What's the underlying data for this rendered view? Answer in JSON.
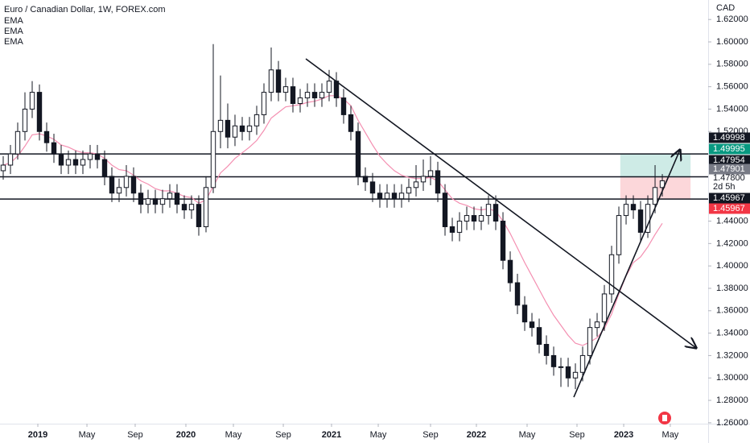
{
  "chart_data": {
    "type": "candlestick",
    "title": "Euro / Canadian Dollar, 1W, FOREX.com",
    "indicators": [
      "EMA",
      "EMA",
      "EMA"
    ],
    "currency": "CAD",
    "xlim": [
      -0.444,
      97.33
    ],
    "ylim": [
      1.2635,
      1.6374
    ],
    "xticks": [
      {
        "value": 4.78,
        "label": "2019"
      },
      {
        "value": 11.56,
        "label": "May"
      },
      {
        "value": 18.22,
        "label": "Sep"
      },
      {
        "value": 25.22,
        "label": "2020"
      },
      {
        "value": 31.78,
        "label": "May"
      },
      {
        "value": 38.67,
        "label": "Sep"
      },
      {
        "value": 45.33,
        "label": "2021"
      },
      {
        "value": 51.78,
        "label": "May"
      },
      {
        "value": 59.0,
        "label": "Sep"
      },
      {
        "value": 65.33,
        "label": "2022"
      },
      {
        "value": 72.33,
        "label": "May"
      },
      {
        "value": 79.22,
        "label": "Sep"
      },
      {
        "value": 85.67,
        "label": "2023"
      },
      {
        "value": 92.1,
        "label": "May"
      }
    ],
    "yticks": [
      {
        "value": 1.62,
        "label": "1.62000"
      },
      {
        "value": 1.6,
        "label": "1.60000"
      },
      {
        "value": 1.58,
        "label": "1.58000"
      },
      {
        "value": 1.56,
        "label": "1.56000"
      },
      {
        "value": 1.54,
        "label": "1.54000"
      },
      {
        "value": 1.52,
        "label": "1.52000"
      },
      {
        "value": 1.44,
        "label": "1.44000"
      },
      {
        "value": 1.42,
        "label": "1.42000"
      },
      {
        "value": 1.4,
        "label": "1.40000"
      },
      {
        "value": 1.38,
        "label": "1.38000"
      },
      {
        "value": 1.36,
        "label": "1.36000"
      },
      {
        "value": 1.34,
        "label": "1.34000"
      },
      {
        "value": 1.32,
        "label": "1.32000"
      },
      {
        "value": 1.3,
        "label": "1.30000"
      },
      {
        "value": 1.28,
        "label": "1.28000"
      },
      {
        "value": 1.26,
        "label": "1.26000"
      }
    ],
    "candles": {
      "open": [
        1.485,
        1.49,
        1.5,
        1.52,
        1.54,
        1.555,
        1.52,
        1.51,
        1.5,
        1.49,
        1.495,
        1.49,
        1.495,
        1.5,
        1.495,
        1.48,
        1.465,
        1.47,
        1.48,
        1.465,
        1.455,
        1.46,
        1.455,
        1.46,
        1.465,
        1.455,
        1.45,
        1.455,
        1.435,
        1.47,
        1.52,
        1.53,
        1.515,
        1.525,
        1.52,
        1.525,
        1.535,
        1.555,
        1.575,
        1.555,
        1.56,
        1.545,
        1.55,
        1.555,
        1.55,
        1.555,
        1.565,
        1.55,
        1.535,
        1.52,
        1.48,
        1.475,
        1.465,
        1.46,
        1.465,
        1.46,
        1.465,
        1.47,
        1.475,
        1.48,
        1.485,
        1.465,
        1.435,
        1.43,
        1.44,
        1.445,
        1.44,
        1.445,
        1.455,
        1.44,
        1.405,
        1.385,
        1.365,
        1.35,
        1.345,
        1.33,
        1.32,
        1.31,
        1.31,
        1.3,
        1.305,
        1.32,
        1.345,
        1.35,
        1.375,
        1.41,
        1.445,
        1.455,
        1.45,
        1.43,
        1.455,
        1.47
      ],
      "high": [
        1.498,
        1.508,
        1.528,
        1.555,
        1.565,
        1.562,
        1.528,
        1.518,
        1.508,
        1.503,
        1.503,
        1.503,
        1.508,
        1.508,
        1.503,
        1.488,
        1.478,
        1.49,
        1.488,
        1.473,
        1.468,
        1.468,
        1.468,
        1.473,
        1.473,
        1.463,
        1.463,
        1.463,
        1.48,
        1.598,
        1.57,
        1.545,
        1.535,
        1.533,
        1.533,
        1.543,
        1.563,
        1.595,
        1.583,
        1.568,
        1.568,
        1.558,
        1.563,
        1.563,
        1.563,
        1.575,
        1.573,
        1.558,
        1.543,
        1.528,
        1.488,
        1.483,
        1.473,
        1.473,
        1.473,
        1.473,
        1.478,
        1.49,
        1.495,
        1.498,
        1.493,
        1.473,
        1.443,
        1.448,
        1.453,
        1.453,
        1.453,
        1.463,
        1.463,
        1.448,
        1.413,
        1.393,
        1.373,
        1.358,
        1.353,
        1.338,
        1.328,
        1.318,
        1.318,
        1.313,
        1.328,
        1.353,
        1.358,
        1.383,
        1.418,
        1.453,
        1.463,
        1.463,
        1.458,
        1.463,
        1.49,
        1.482
      ],
      "low": [
        1.477,
        1.482,
        1.495,
        1.512,
        1.532,
        1.512,
        1.502,
        1.492,
        1.482,
        1.482,
        1.482,
        1.482,
        1.487,
        1.487,
        1.472,
        1.457,
        1.457,
        1.462,
        1.457,
        1.447,
        1.447,
        1.447,
        1.447,
        1.452,
        1.447,
        1.442,
        1.442,
        1.427,
        1.43,
        1.465,
        1.505,
        1.505,
        1.507,
        1.512,
        1.512,
        1.517,
        1.527,
        1.547,
        1.547,
        1.547,
        1.537,
        1.537,
        1.542,
        1.542,
        1.542,
        1.547,
        1.542,
        1.527,
        1.512,
        1.472,
        1.467,
        1.457,
        1.452,
        1.452,
        1.452,
        1.452,
        1.457,
        1.462,
        1.467,
        1.472,
        1.457,
        1.427,
        1.422,
        1.422,
        1.432,
        1.432,
        1.432,
        1.437,
        1.432,
        1.397,
        1.377,
        1.357,
        1.342,
        1.337,
        1.322,
        1.312,
        1.302,
        1.292,
        1.292,
        1.29,
        1.297,
        1.312,
        1.337,
        1.342,
        1.367,
        1.402,
        1.437,
        1.442,
        1.422,
        1.425,
        1.447,
        1.462
      ],
      "close": [
        1.49,
        1.5,
        1.52,
        1.54,
        1.555,
        1.52,
        1.51,
        1.5,
        1.49,
        1.495,
        1.49,
        1.495,
        1.5,
        1.495,
        1.48,
        1.465,
        1.47,
        1.48,
        1.465,
        1.455,
        1.46,
        1.455,
        1.46,
        1.465,
        1.455,
        1.45,
        1.455,
        1.435,
        1.47,
        1.52,
        1.53,
        1.515,
        1.525,
        1.52,
        1.525,
        1.535,
        1.555,
        1.575,
        1.555,
        1.56,
        1.545,
        1.55,
        1.555,
        1.55,
        1.555,
        1.565,
        1.55,
        1.535,
        1.52,
        1.48,
        1.475,
        1.465,
        1.46,
        1.465,
        1.46,
        1.465,
        1.47,
        1.475,
        1.48,
        1.485,
        1.465,
        1.435,
        1.43,
        1.44,
        1.445,
        1.44,
        1.445,
        1.455,
        1.44,
        1.405,
        1.385,
        1.365,
        1.35,
        1.345,
        1.33,
        1.32,
        1.31,
        1.31,
        1.3,
        1.305,
        1.32,
        1.345,
        1.35,
        1.375,
        1.41,
        1.445,
        1.455,
        1.45,
        1.43,
        1.455,
        1.47,
        1.476
      ]
    },
    "ema": {
      "color": "#f48fb1",
      "values": [
        1.49,
        1.492,
        1.498,
        1.507,
        1.517,
        1.518,
        1.516,
        1.513,
        1.508,
        1.506,
        1.503,
        1.501,
        1.501,
        1.5,
        1.496,
        1.49,
        1.486,
        1.485,
        1.481,
        1.476,
        1.473,
        1.469,
        1.467,
        1.467,
        1.465,
        1.462,
        1.461,
        1.456,
        1.459,
        1.471,
        1.483,
        1.489,
        1.496,
        1.501,
        1.506,
        1.512,
        1.521,
        1.532,
        1.537,
        1.542,
        1.543,
        1.544,
        1.546,
        1.547,
        1.549,
        1.552,
        1.552,
        1.549,
        1.543,
        1.53,
        1.519,
        1.508,
        1.498,
        1.491,
        1.485,
        1.481,
        1.479,
        1.478,
        1.478,
        1.479,
        1.476,
        1.468,
        1.46,
        1.456,
        1.454,
        1.451,
        1.45,
        1.451,
        1.449,
        1.44,
        1.429,
        1.416,
        1.403,
        1.391,
        1.379,
        1.367,
        1.356,
        1.347,
        1.338,
        1.331,
        1.329,
        1.332,
        1.336,
        1.344,
        1.357,
        1.375,
        1.391,
        1.403,
        1.408,
        1.417,
        1.428,
        1.438
      ]
    },
    "price_labels": [
      {
        "value": 1.49998,
        "color": "#131722",
        "line": true
      },
      {
        "value": 1.49995,
        "color": "#089981"
      },
      {
        "value": 1.47954,
        "color": "#131722",
        "line": true
      },
      {
        "value": 1.47901,
        "color": "#787b86"
      },
      {
        "value": 1.478,
        "label": "1.47800"
      },
      {
        "label": "2d 5h"
      },
      {
        "value": 1.45967,
        "color": "#131722",
        "line": true
      },
      {
        "value": 1.45967,
        "color": "#f23645"
      }
    ],
    "position": {
      "start": 85.2,
      "end": 94.9
    },
    "trendlines": [
      {
        "from": [
          41.78,
          1.5849
        ],
        "to": [
          95.67,
          1.3268
        ]
      },
      {
        "from": [
          78.78,
          1.2829
        ],
        "to": [
          93.44,
          1.5036
        ]
      }
    ]
  }
}
